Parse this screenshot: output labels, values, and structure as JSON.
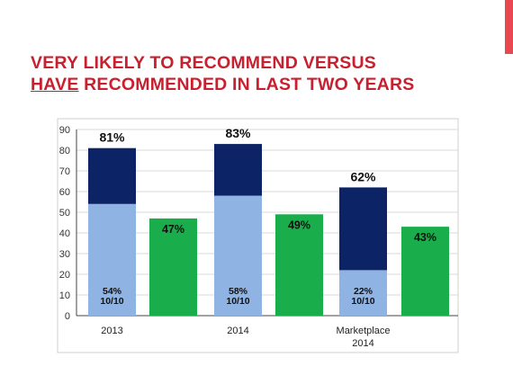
{
  "slide": {
    "title_line1": "VERY LIKELY TO RECOMMEND VERSUS",
    "title_line2_underlined": "HAVE",
    "title_line2_rest": " RECOMMENDED IN LAST TWO YEARS"
  },
  "colors": {
    "title": "#c8202f",
    "accent": "#e8484e",
    "dark_blue": "#0c2465",
    "light_blue": "#8fb3e3",
    "green": "#1aad4b",
    "axis": "#444444",
    "grid": "#d9d9d9"
  },
  "chart_data": {
    "type": "bar",
    "stacked": true,
    "title": "",
    "xlabel": "",
    "ylabel": "",
    "ylim": [
      0,
      90
    ],
    "yticks": [
      "0",
      "10",
      "20",
      "30",
      "40",
      "50",
      "60",
      "70",
      "80",
      "90"
    ],
    "grid": true,
    "legend": "none",
    "groups": [
      {
        "category": [
          "2013"
        ],
        "stack": {
          "total": 81,
          "total_label": "81%",
          "base": 54,
          "base_label": [
            "54%",
            "10/10"
          ]
        },
        "green": {
          "value": 47,
          "label": "47%"
        }
      },
      {
        "category": [
          "2014"
        ],
        "stack": {
          "total": 83,
          "total_label": "83%",
          "base": 58,
          "base_label": [
            "58%",
            "10/10"
          ]
        },
        "green": {
          "value": 49,
          "label": "49%"
        }
      },
      {
        "category": [
          "Marketplace",
          "2014"
        ],
        "stack": {
          "total": 62,
          "total_label": "62%",
          "base": 22,
          "base_label": [
            "22%",
            "10/10"
          ]
        },
        "green": {
          "value": 43,
          "label": "43%"
        }
      }
    ]
  }
}
